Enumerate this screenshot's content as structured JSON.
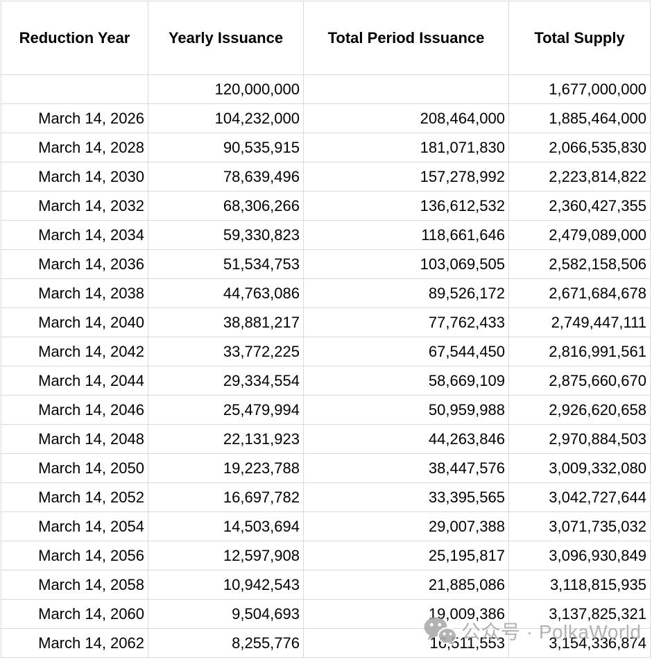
{
  "table": {
    "columns": [
      {
        "key": "reduction_year",
        "label": "Reduction Year"
      },
      {
        "key": "yearly_issuance",
        "label": "Yearly Issuance"
      },
      {
        "key": "total_period_issuance",
        "label": "Total Period Issuance"
      },
      {
        "key": "total_supply",
        "label": "Total Supply"
      }
    ],
    "rows": [
      [
        "",
        "120,000,000",
        "",
        "1,677,000,000"
      ],
      [
        "March 14, 2026",
        "104,232,000",
        "208,464,000",
        "1,885,464,000"
      ],
      [
        "March 14, 2028",
        "90,535,915",
        "181,071,830",
        "2,066,535,830"
      ],
      [
        "March 14, 2030",
        "78,639,496",
        "157,278,992",
        "2,223,814,822"
      ],
      [
        "March 14, 2032",
        "68,306,266",
        "136,612,532",
        "2,360,427,355"
      ],
      [
        "March 14, 2034",
        "59,330,823",
        "118,661,646",
        "2,479,089,000"
      ],
      [
        "March 14, 2036",
        "51,534,753",
        "103,069,505",
        "2,582,158,506"
      ],
      [
        "March 14, 2038",
        "44,763,086",
        "89,526,172",
        "2,671,684,678"
      ],
      [
        "March 14, 2040",
        "38,881,217",
        "77,762,433",
        "2,749,447,111"
      ],
      [
        "March 14, 2042",
        "33,772,225",
        "67,544,450",
        "2,816,991,561"
      ],
      [
        "March 14, 2044",
        "29,334,554",
        "58,669,109",
        "2,875,660,670"
      ],
      [
        "March 14, 2046",
        "25,479,994",
        "50,959,988",
        "2,926,620,658"
      ],
      [
        "March 14, 2048",
        "22,131,923",
        "44,263,846",
        "2,970,884,503"
      ],
      [
        "March 14, 2050",
        "19,223,788",
        "38,447,576",
        "3,009,332,080"
      ],
      [
        "March 14, 2052",
        "16,697,782",
        "33,395,565",
        "3,042,727,644"
      ],
      [
        "March 14, 2054",
        "14,503,694",
        "29,007,388",
        "3,071,735,032"
      ],
      [
        "March 14, 2056",
        "12,597,908",
        "25,195,817",
        "3,096,930,849"
      ],
      [
        "March 14, 2058",
        "10,942,543",
        "21,885,086",
        "3,118,815,935"
      ],
      [
        "March 14, 2060",
        "9,504,693",
        "19,009,386",
        "3,137,825,321"
      ],
      [
        "March 14, 2062",
        "8,255,776",
        "16,511,553",
        "3,154,336,874"
      ]
    ]
  },
  "watermark": {
    "icon": "wechat-icon",
    "text": "公众号 · PolkaWorld"
  },
  "colors": {
    "grid_line": "#d9d9d9",
    "text": "#000000",
    "watermark": "#a9a9a9",
    "background": "#ffffff"
  }
}
